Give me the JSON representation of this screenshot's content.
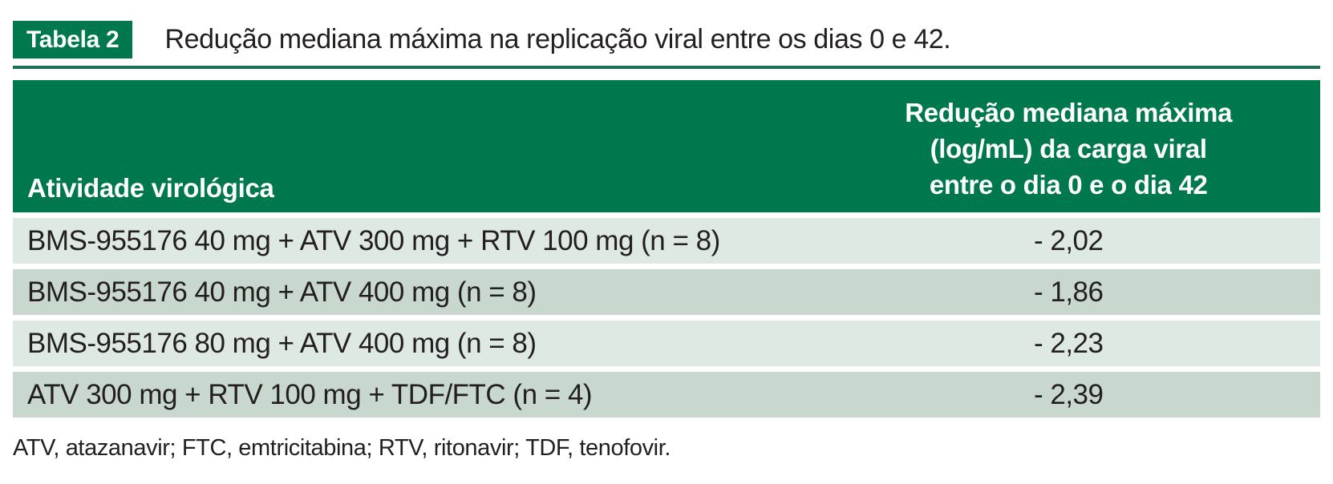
{
  "document": {
    "badge": "Tabela 2",
    "title": "Redução mediana máxima na replicação viral entre os dias 0 e 42.",
    "footnote": "ATV, atazanavir; FTC, emtricitabina; RTV, ritonavir; TDF, tenofovir."
  },
  "table": {
    "header": {
      "col1": "Atividade virológica",
      "col2_lines": [
        "Redução mediana máxima",
        "(log/mL) da carga viral",
        "entre o dia 0 e o dia 42"
      ]
    },
    "rows": [
      {
        "treatment": "BMS-955176 40 mg + ATV 300 mg + RTV 100 mg (n = 8)",
        "value": "- 2,02"
      },
      {
        "treatment": "BMS-955176 40 mg + ATV 400 mg (n = 8)",
        "value": "- 1,86"
      },
      {
        "treatment": "BMS-955176 80 mg + ATV 400 mg (n = 8)",
        "value": "- 2,23"
      },
      {
        "treatment": "ATV 300 mg + RTV 100 mg + TDF/FTC (n = 4)",
        "value": "- 2,39"
      }
    ]
  },
  "colors": {
    "header_green": "#00784E",
    "rule_green": "#1F6F58",
    "row_light": "#DFE9E4",
    "row_dark": "#C9D8CF",
    "text": "#231F20"
  },
  "chart_data": {
    "type": "table",
    "title": "Tabela 2. Redução mediana máxima na replicação viral entre os dias 0 e 42.",
    "columns": [
      "Atividade virológica",
      "Redução mediana máxima (log/mL) da carga viral entre o dia 0 e o dia 42"
    ],
    "rows": [
      [
        "BMS-955176 40 mg + ATV 300 mg + RTV 100 mg (n = 8)",
        -2.02
      ],
      [
        "BMS-955176 40 mg + ATV 400 mg (n = 8)",
        -1.86
      ],
      [
        "BMS-955176 80 mg + ATV 400 mg (n = 8)",
        -2.23
      ],
      [
        "ATV 300 mg + RTV 100 mg + TDF/FTC (n = 4)",
        -2.39
      ]
    ],
    "footnote": "ATV, atazanavir; FTC, emtricitabina; RTV, ritonavir; TDF, tenofovir."
  }
}
